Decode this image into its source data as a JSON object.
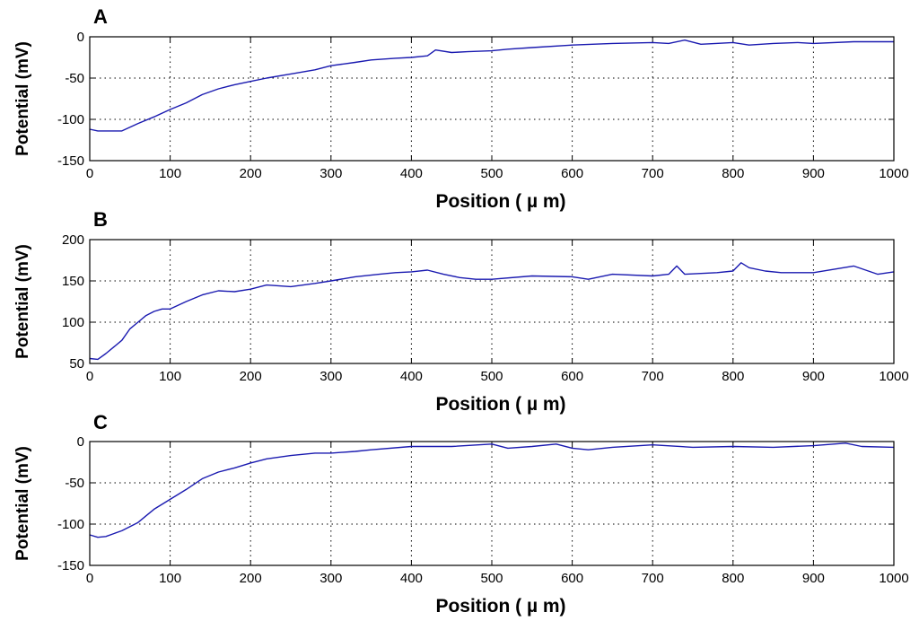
{
  "chart_data": [
    {
      "type": "line",
      "panel_label": "A",
      "xlabel": "Position ( µ m)",
      "ylabel": "Potential (mV)",
      "xlim": [
        0,
        1000
      ],
      "ylim": [
        -150,
        0
      ],
      "xticks": [
        0,
        100,
        200,
        300,
        400,
        500,
        600,
        700,
        800,
        900,
        1000
      ],
      "yticks": [
        -150,
        -100,
        -50,
        0
      ],
      "grid": true,
      "line_color": "#1a1ab0",
      "series": [
        {
          "x": [
            0,
            10,
            40,
            60,
            80,
            100,
            120,
            140,
            160,
            180,
            200,
            220,
            250,
            280,
            300,
            330,
            350,
            380,
            400,
            420,
            430,
            450,
            470,
            500,
            520,
            550,
            600,
            650,
            700,
            720,
            740,
            760,
            800,
            820,
            850,
            880,
            900,
            950,
            1000
          ],
          "y": [
            -112,
            -114,
            -114,
            -105,
            -97,
            -88,
            -80,
            -70,
            -63,
            -58,
            -54,
            -50,
            -45,
            -40,
            -35,
            -31,
            -28,
            -26,
            -25,
            -23,
            -16,
            -19,
            -18,
            -17,
            -15,
            -13,
            -10,
            -8,
            -7,
            -8,
            -4,
            -9,
            -7,
            -10,
            -8,
            -7,
            -8,
            -6,
            -6
          ]
        }
      ]
    },
    {
      "type": "line",
      "panel_label": "B",
      "xlabel": "Position ( µ m)",
      "ylabel": "Potential (mV)",
      "xlim": [
        0,
        1000
      ],
      "ylim": [
        50,
        200
      ],
      "xticks": [
        0,
        100,
        200,
        300,
        400,
        500,
        600,
        700,
        800,
        900,
        1000
      ],
      "yticks": [
        50,
        100,
        150,
        200
      ],
      "grid": true,
      "line_color": "#1a1ab0",
      "series": [
        {
          "x": [
            0,
            10,
            20,
            30,
            40,
            50,
            60,
            70,
            80,
            90,
            100,
            120,
            140,
            160,
            180,
            200,
            220,
            250,
            280,
            300,
            330,
            360,
            380,
            400,
            420,
            440,
            460,
            480,
            500,
            550,
            600,
            620,
            650,
            700,
            720,
            730,
            740,
            780,
            800,
            810,
            820,
            840,
            860,
            900,
            950,
            980,
            1000
          ],
          "y": [
            56,
            55,
            62,
            70,
            78,
            92,
            100,
            108,
            113,
            116,
            116,
            125,
            133,
            138,
            137,
            140,
            145,
            143,
            147,
            150,
            155,
            158,
            160,
            161,
            163,
            158,
            154,
            152,
            152,
            156,
            155,
            152,
            158,
            156,
            158,
            168,
            158,
            160,
            162,
            172,
            166,
            162,
            160,
            160,
            168,
            158,
            161
          ]
        }
      ]
    },
    {
      "type": "line",
      "panel_label": "C",
      "xlabel": "Position ( µ m)",
      "ylabel": "Potential (mV)",
      "xlim": [
        0,
        1000
      ],
      "ylim": [
        -150,
        0
      ],
      "xticks": [
        0,
        100,
        200,
        300,
        400,
        500,
        600,
        700,
        800,
        900,
        1000
      ],
      "yticks": [
        -150,
        -100,
        -50,
        0
      ],
      "grid": true,
      "line_color": "#1a1ab0",
      "series": [
        {
          "x": [
            0,
            10,
            20,
            40,
            60,
            70,
            80,
            100,
            120,
            140,
            160,
            180,
            200,
            220,
            250,
            280,
            300,
            330,
            350,
            400,
            450,
            500,
            520,
            550,
            580,
            600,
            620,
            650,
            700,
            750,
            800,
            850,
            900,
            940,
            960,
            1000
          ],
          "y": [
            -113,
            -116,
            -115,
            -108,
            -98,
            -90,
            -82,
            -70,
            -58,
            -45,
            -37,
            -32,
            -26,
            -21,
            -17,
            -14,
            -14,
            -12,
            -10,
            -6,
            -6,
            -3,
            -8,
            -6,
            -3,
            -8,
            -10,
            -7,
            -4,
            -7,
            -6,
            -7,
            -5,
            -2,
            -6,
            -7
          ]
        }
      ]
    }
  ]
}
